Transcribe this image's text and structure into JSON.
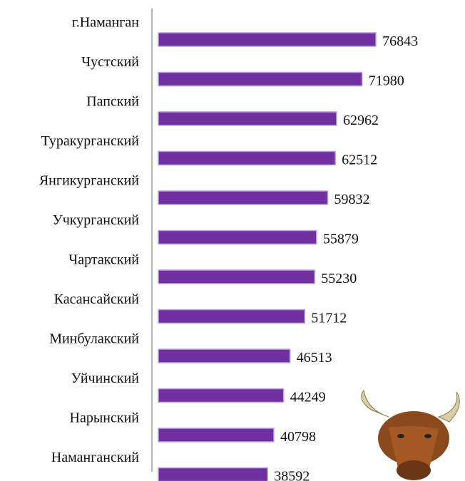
{
  "chart_data": {
    "type": "bar",
    "orientation": "horizontal",
    "categories": [
      "г.Наманган",
      "Чустский",
      "Папский",
      "Туракурганский",
      "Янгикурганский",
      "Учкурганский",
      "Чартакский",
      "Касансайский",
      "Минбулакский",
      "Уйчинский",
      "Нарынский",
      "Наманганский"
    ],
    "values": [
      76843,
      71980,
      62962,
      62512,
      59832,
      55879,
      55230,
      51712,
      46513,
      44249,
      40798,
      38592
    ],
    "color": "#7030a0",
    "xlim": [
      0,
      100000
    ]
  }
}
